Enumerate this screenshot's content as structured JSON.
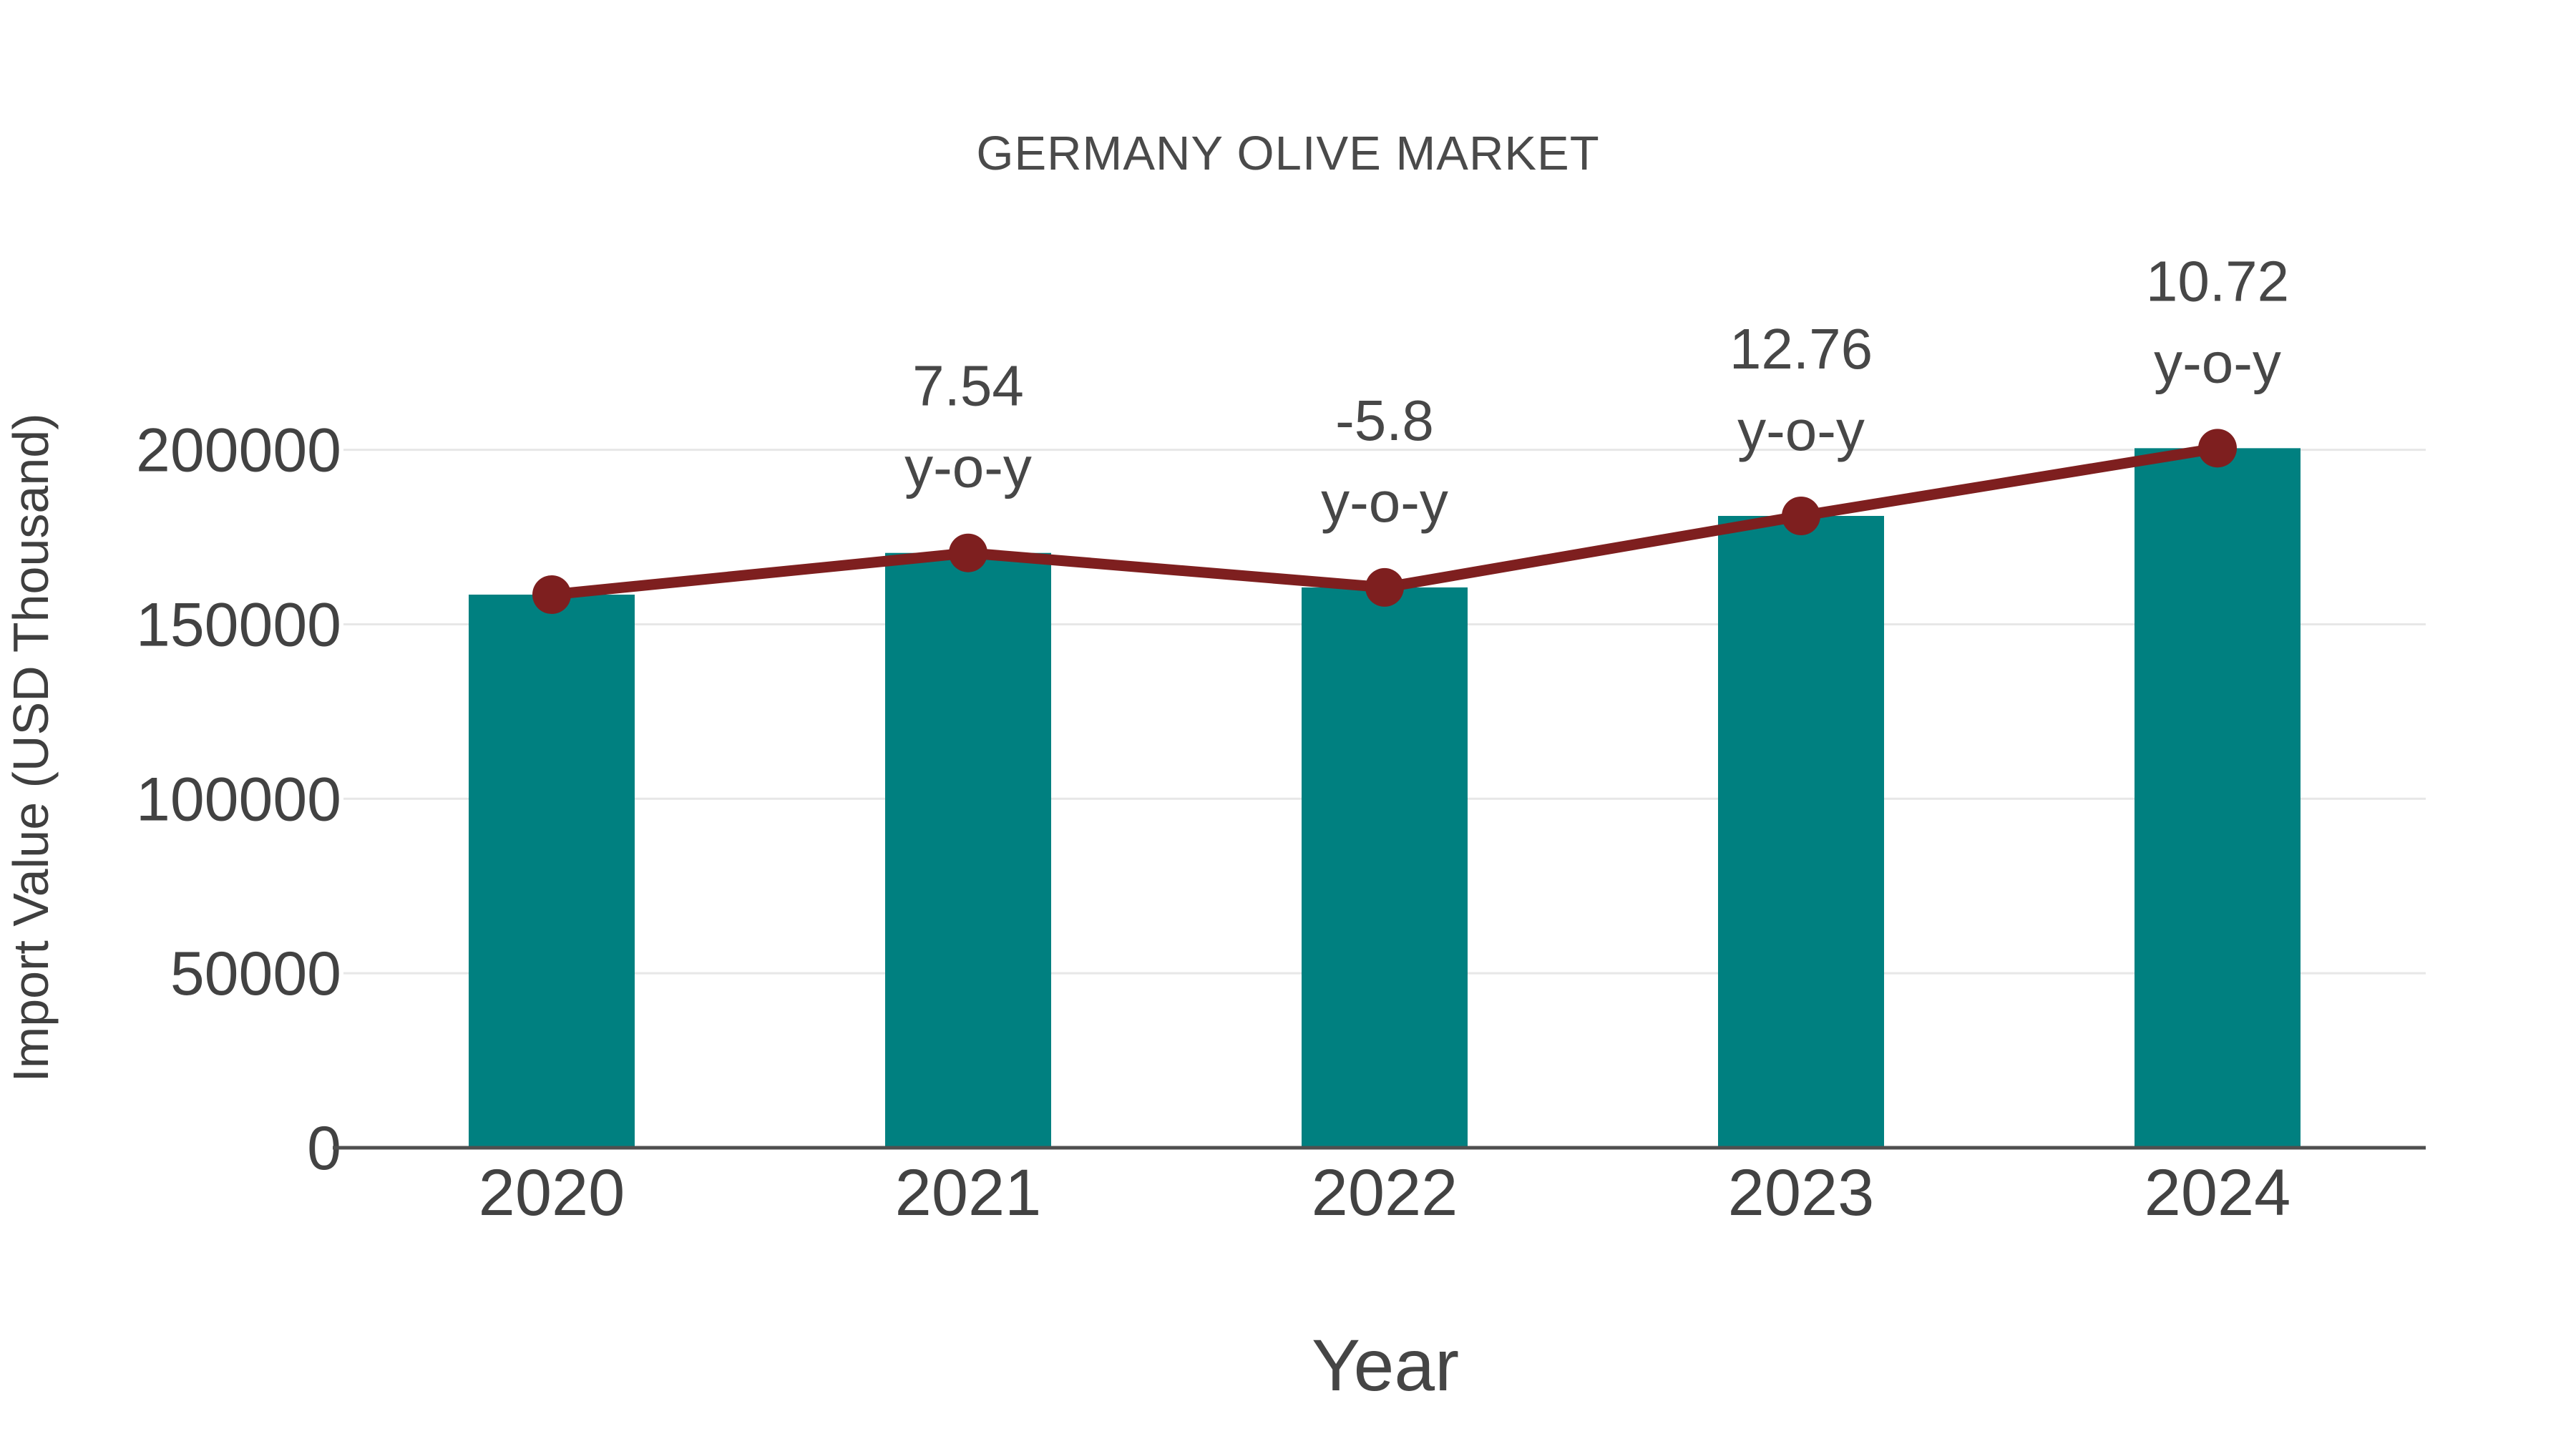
{
  "title": "GERMANY OLIVE MARKET",
  "chart_data": {
    "type": "bar",
    "title": "GERMANY OLIVE MARKET",
    "xlabel": "Year",
    "ylabel": "Import Value (USD Thousand)",
    "categories": [
      "2020",
      "2021",
      "2022",
      "2023",
      "2024"
    ],
    "series": [
      {
        "name": "import-value-bars",
        "type": "bar",
        "values": [
          158500,
          170450,
          160565,
          181055,
          200460
        ]
      },
      {
        "name": "import-value-line",
        "type": "line",
        "values": [
          158500,
          170450,
          160565,
          181055,
          200460
        ]
      }
    ],
    "annotations": [
      {
        "category": "2021",
        "value": "7.54",
        "unit": "y-o-y"
      },
      {
        "category": "2022",
        "value": "-5.8",
        "unit": "y-o-y"
      },
      {
        "category": "2023",
        "value": "12.76",
        "unit": "y-o-y"
      },
      {
        "category": "2024",
        "value": "10.72",
        "unit": "y-o-y"
      }
    ],
    "yticks": [
      0,
      50000,
      100000,
      150000,
      200000
    ],
    "ylim": [
      0,
      205000
    ],
    "grid": true,
    "legend_position": "none"
  },
  "colors": {
    "bar": "#008080",
    "line": "#7e1f1f",
    "marker": "#7e1f1f",
    "grid": "#e7e7e7",
    "axis": "#4f4f4f",
    "tick_text": "#424242",
    "annotation_text": "#474747",
    "title_text": "#4a4a4a"
  }
}
